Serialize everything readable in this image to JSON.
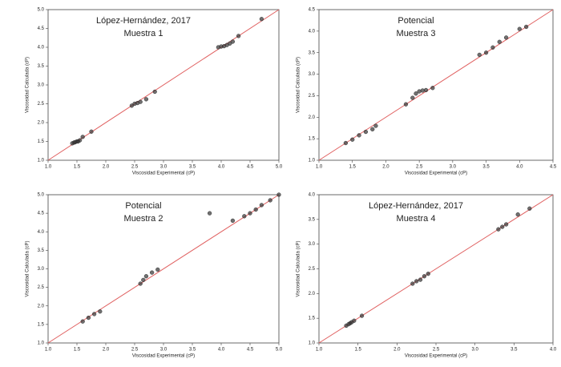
{
  "chart_data": [
    {
      "type": "scatter",
      "title": "López-Hernández, 2017",
      "subtitle": "Muestra 1",
      "xlabel": "Viscosidad Experimental (cP)",
      "ylabel": "Viscosidad Calculada (cP)",
      "x": [
        1.42,
        1.45,
        1.47,
        1.5,
        1.52,
        1.55,
        1.6,
        1.75,
        2.45,
        2.5,
        2.55,
        2.6,
        2.7,
        2.85,
        3.95,
        4.0,
        4.05,
        4.1,
        4.15,
        4.2,
        4.3,
        4.7
      ],
      "y": [
        1.45,
        1.47,
        1.48,
        1.5,
        1.5,
        1.53,
        1.62,
        1.76,
        2.45,
        2.5,
        2.52,
        2.55,
        2.62,
        2.82,
        4.0,
        4.02,
        4.03,
        4.06,
        4.1,
        4.15,
        4.3,
        4.75
      ],
      "xlim": [
        1.0,
        5.0
      ],
      "ylim": [
        1.0,
        5.0
      ],
      "xticks": [
        {
          "value": 1.0,
          "label": "1.0"
        },
        1.5,
        {
          "value": 2.0,
          "label": "2.0"
        },
        2.5,
        {
          "value": 3.0,
          "label": "3.0"
        },
        3.5,
        {
          "value": 4.0,
          "label": "4.0"
        },
        4.5,
        {
          "value": 5.0,
          "label": "5.0"
        }
      ],
      "yticks": [
        {
          "value": 1.0,
          "label": "1.0"
        },
        1.5,
        {
          "value": 2.0,
          "label": "2.0"
        },
        2.5,
        {
          "value": 3.0,
          "label": "3.0"
        },
        3.5,
        {
          "value": 4.0,
          "label": "4.0"
        },
        4.5,
        {
          "value": 5.0,
          "label": "5.0"
        }
      ],
      "color": "#333333",
      "line_color": "#e06060"
    },
    {
      "type": "scatter",
      "title": "Potencial",
      "subtitle": "Muestra 3",
      "xlabel": "Viscosidad Experimental (cP)",
      "ylabel": "Viscosidad Calculada (cP)",
      "x": [
        1.4,
        1.5,
        1.6,
        1.7,
        1.8,
        1.85,
        2.3,
        2.4,
        2.45,
        2.5,
        2.55,
        2.6,
        2.7,
        3.4,
        3.5,
        3.6,
        3.7,
        3.8,
        4.0,
        4.1
      ],
      "y": [
        1.4,
        1.48,
        1.58,
        1.66,
        1.72,
        1.8,
        2.3,
        2.45,
        2.55,
        2.6,
        2.62,
        2.63,
        2.68,
        3.45,
        3.5,
        3.62,
        3.75,
        3.85,
        4.05,
        4.1
      ],
      "xlim": [
        1.0,
        4.5
      ],
      "ylim": [
        1.0,
        4.5
      ],
      "xticks": [
        {
          "value": 1.0,
          "label": "1.0"
        },
        1.5,
        {
          "value": 2.0,
          "label": "2.0"
        },
        2.5,
        {
          "value": 3.0,
          "label": "3.0"
        },
        3.5,
        {
          "value": 4.0,
          "label": "4.0"
        },
        4.5
      ],
      "yticks": [
        {
          "value": 1.0,
          "label": "1.0"
        },
        1.5,
        {
          "value": 2.0,
          "label": "2.0"
        },
        2.5,
        {
          "value": 3.0,
          "label": "3.0"
        },
        3.5,
        {
          "value": 4.0,
          "label": "4.0"
        },
        4.5
      ],
      "color": "#333333",
      "line_color": "#e06060"
    },
    {
      "type": "scatter",
      "title": "Potencial",
      "subtitle": "Muestra 2",
      "xlabel": "Viscosidad Experimental (cP)",
      "ylabel": "Viscosidad Calculada (cP)",
      "x": [
        1.6,
        1.7,
        1.8,
        1.9,
        2.6,
        2.65,
        2.7,
        2.8,
        2.9,
        3.8,
        4.2,
        4.4,
        4.5,
        4.6,
        4.7,
        4.85,
        5.0
      ],
      "y": [
        1.58,
        1.68,
        1.78,
        1.85,
        2.6,
        2.7,
        2.8,
        2.9,
        2.98,
        4.5,
        4.3,
        4.42,
        4.5,
        4.6,
        4.72,
        4.85,
        5.0
      ],
      "xlim": [
        1.0,
        5.0
      ],
      "ylim": [
        1.0,
        5.0
      ],
      "xticks": [
        {
          "value": 1.0,
          "label": "1.0"
        },
        1.5,
        {
          "value": 2.0,
          "label": "2.0"
        },
        2.5,
        {
          "value": 3.0,
          "label": "3.0"
        },
        3.5,
        {
          "value": 4.0,
          "label": "4.0"
        },
        4.5,
        {
          "value": 5.0,
          "label": "5.0"
        }
      ],
      "yticks": [
        {
          "value": 1.0,
          "label": "1.0"
        },
        1.5,
        {
          "value": 2.0,
          "label": "2.0"
        },
        2.5,
        {
          "value": 3.0,
          "label": "3.0"
        },
        3.5,
        {
          "value": 4.0,
          "label": "4.0"
        },
        4.5,
        {
          "value": 5.0,
          "label": "5.0"
        }
      ],
      "color": "#333333",
      "line_color": "#e06060"
    },
    {
      "type": "scatter",
      "title": "López-Hernández, 2017",
      "subtitle": "Muestra 4",
      "xlabel": "Viscosidad Experimental (cP)",
      "ylabel": "Viscosidad Calculada (cP)",
      "x": [
        1.35,
        1.38,
        1.4,
        1.42,
        1.45,
        1.55,
        2.2,
        2.25,
        2.3,
        2.35,
        2.4,
        3.3,
        3.35,
        3.4,
        3.55,
        3.7
      ],
      "y": [
        1.35,
        1.38,
        1.4,
        1.42,
        1.45,
        1.55,
        2.2,
        2.25,
        2.28,
        2.35,
        2.4,
        3.3,
        3.35,
        3.4,
        3.6,
        3.72
      ],
      "xlim": [
        1.0,
        4.0
      ],
      "ylim": [
        1.0,
        4.0
      ],
      "xticks": [
        {
          "value": 1.0,
          "label": "1.0"
        },
        1.5,
        {
          "value": 2.0,
          "label": "2.0"
        },
        2.5,
        {
          "value": 3.0,
          "label": "3.0"
        },
        3.5,
        {
          "value": 4.0,
          "label": "4.0"
        }
      ],
      "yticks": [
        {
          "value": 1.0,
          "label": "1.0"
        },
        1.5,
        {
          "value": 2.0,
          "label": "2.0"
        },
        2.5,
        {
          "value": 3.0,
          "label": "3.0"
        },
        3.5,
        {
          "value": 4.0,
          "label": "4.0"
        }
      ],
      "color": "#333333",
      "line_color": "#e06060"
    }
  ]
}
